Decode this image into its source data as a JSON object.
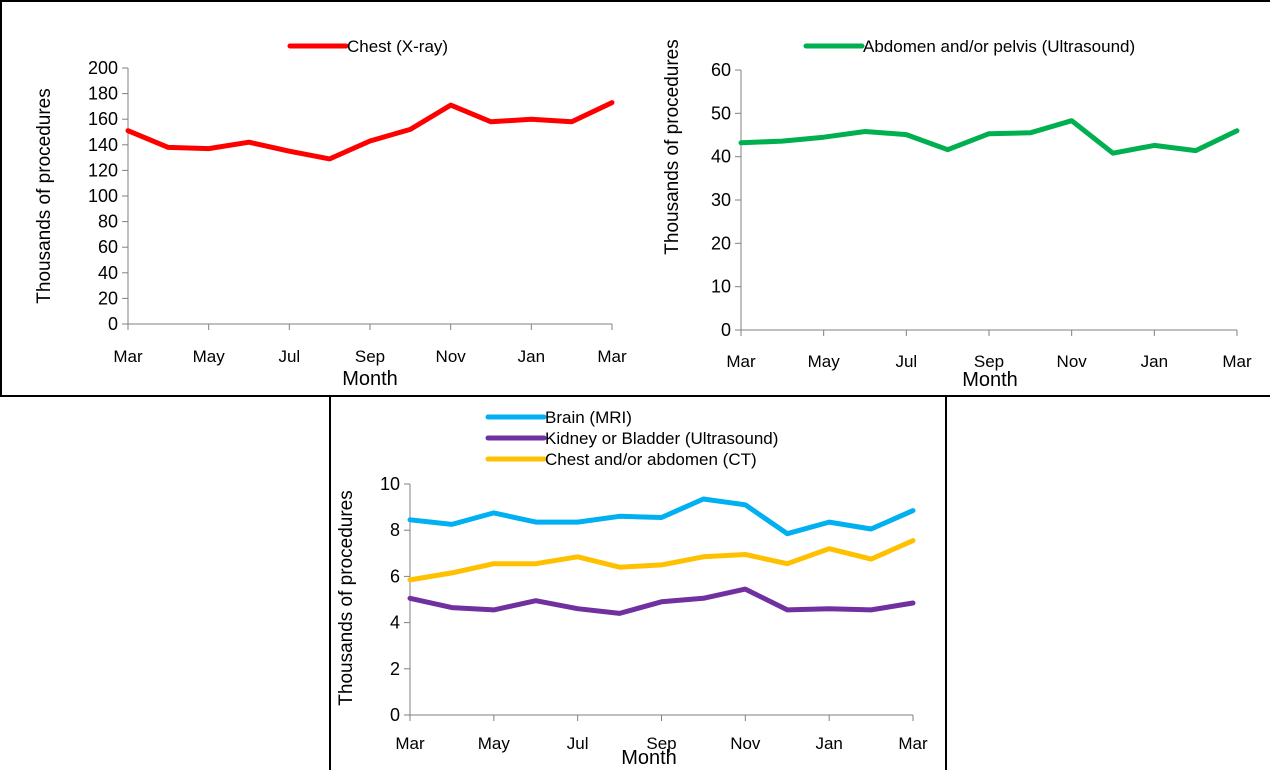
{
  "chart_data": [
    {
      "type": "line",
      "x": [
        "Mar",
        "Apr",
        "May",
        "Jun",
        "Jul",
        "Aug",
        "Sep",
        "Oct",
        "Nov",
        "Dec",
        "Jan",
        "Feb",
        "Mar"
      ],
      "tick_labels": [
        "Mar",
        "May",
        "Jul",
        "Sep",
        "Nov",
        "Jan",
        "Mar"
      ],
      "xlabel": "Month",
      "ylabel": "Thousands of procedures",
      "ylim": [
        0,
        200
      ],
      "yticks": [
        0,
        20,
        40,
        60,
        80,
        100,
        120,
        140,
        160,
        180,
        200
      ],
      "grid": false,
      "legend_position": "top",
      "series": [
        {
          "name": "Chest (X-ray)",
          "color": "#ff0000",
          "values": [
            151,
            138,
            137,
            142,
            135,
            129,
            143,
            152,
            171,
            158,
            160,
            158,
            173
          ]
        }
      ]
    },
    {
      "type": "line",
      "x": [
        "Mar",
        "Apr",
        "May",
        "Jun",
        "Jul",
        "Aug",
        "Sep",
        "Oct",
        "Nov",
        "Dec",
        "Jan",
        "Feb",
        "Mar"
      ],
      "tick_labels": [
        "Mar",
        "May",
        "Jul",
        "Sep",
        "Nov",
        "Jan",
        "Mar"
      ],
      "xlabel": "Month",
      "ylabel": "Thousands of procedures",
      "ylim": [
        0,
        60
      ],
      "yticks": [
        0,
        10,
        20,
        30,
        40,
        50,
        60
      ],
      "grid": false,
      "legend_position": "top",
      "series": [
        {
          "name": "Abdomen and/or pelvis (Ultrasound)",
          "color": "#00b050",
          "values": [
            43.2,
            43.6,
            44.5,
            45.8,
            45.1,
            41.6,
            45.3,
            45.5,
            48.3,
            40.8,
            42.6,
            41.4,
            46.0
          ]
        }
      ]
    },
    {
      "type": "line",
      "x": [
        "Mar",
        "Apr",
        "May",
        "Jun",
        "Jul",
        "Aug",
        "Sep",
        "Oct",
        "Nov",
        "Dec",
        "Jan",
        "Feb",
        "Mar"
      ],
      "tick_labels": [
        "Mar",
        "May",
        "Jul",
        "Sep",
        "Nov",
        "Jan",
        "Mar"
      ],
      "xlabel": "Month",
      "ylabel": "Thousands of procedures",
      "ylim": [
        0,
        10
      ],
      "yticks": [
        0,
        2,
        4,
        6,
        8,
        10
      ],
      "grid": false,
      "legend_position": "top",
      "series": [
        {
          "name": "Brain (MRI)",
          "color": "#00b0f0",
          "values": [
            8.45,
            8.25,
            8.75,
            8.35,
            8.35,
            8.6,
            8.55,
            9.35,
            9.1,
            7.85,
            8.35,
            8.05,
            8.85
          ]
        },
        {
          "name": "Kidney or Bladder (Ultrasound)",
          "color": "#7030a0",
          "values": [
            5.05,
            4.65,
            4.55,
            4.95,
            4.6,
            4.4,
            4.9,
            5.05,
            5.45,
            4.55,
            4.6,
            4.55,
            4.85
          ]
        },
        {
          "name": "Chest and/or abdomen (CT)",
          "color": "#ffc000",
          "values": [
            5.85,
            6.15,
            6.55,
            6.55,
            6.85,
            6.4,
            6.5,
            6.85,
            6.95,
            6.55,
            7.2,
            6.75,
            7.55
          ]
        }
      ]
    }
  ]
}
